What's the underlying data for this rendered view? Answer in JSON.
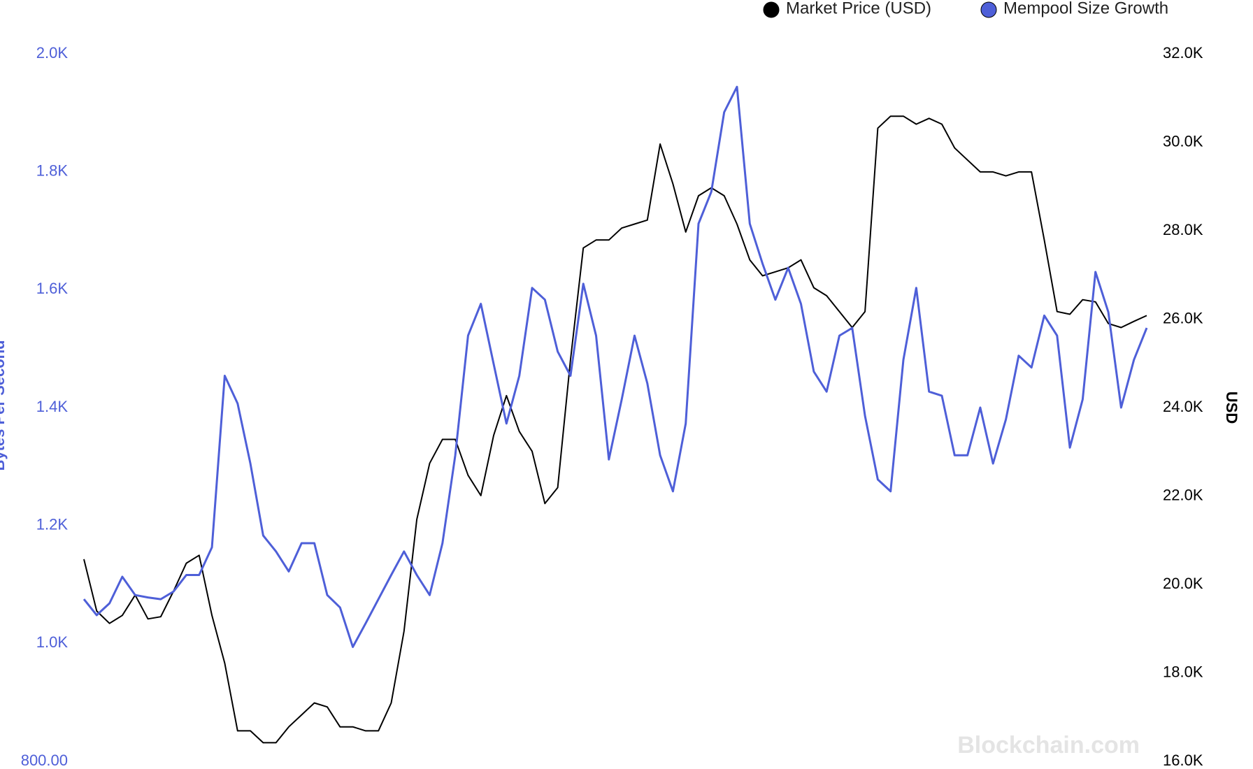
{
  "chart_data": {
    "type": "line",
    "y_label": "Bytes Per Second",
    "y2_label": "USD",
    "watermark": "Blockchain.com",
    "categories": [
      null,
      null,
      null,
      null,
      null,
      null,
      null,
      null,
      null,
      null,
      null,
      null,
      null,
      null,
      null,
      null,
      null,
      null,
      null,
      null,
      null,
      null,
      null,
      null,
      null,
      null,
      null,
      null,
      null,
      null,
      null,
      null,
      null,
      null,
      null,
      null,
      null,
      null,
      null,
      null,
      null,
      null,
      null,
      null,
      null,
      null,
      null,
      null,
      null,
      null,
      null,
      null,
      null,
      null,
      null,
      null,
      null,
      null,
      null,
      null,
      null,
      null,
      null,
      null,
      null,
      null,
      null,
      null,
      null,
      null,
      null,
      null,
      null,
      null,
      null,
      null,
      null,
      null,
      null,
      null,
      null,
      null,
      null,
      null
    ],
    "series": [
      {
        "name": "Market Price (USD)",
        "color": "#000000",
        "axis": "y2",
        "values": [
          20570,
          19400,
          19120,
          19300,
          19760,
          19220,
          19270,
          19850,
          20480,
          20660,
          19300,
          18220,
          16690,
          16690,
          16420,
          16420,
          16780,
          17050,
          17320,
          17230,
          16780,
          16780,
          16690,
          16690,
          17320,
          18940,
          21470,
          22740,
          23280,
          23280,
          22470,
          22010,
          23370,
          24270,
          23460,
          23010,
          21830,
          22190,
          25080,
          27610,
          27790,
          27790,
          28060,
          28150,
          28240,
          29960,
          29060,
          27970,
          28790,
          28970,
          28790,
          28150,
          27340,
          26980,
          27070,
          27160,
          27340,
          26710,
          26530,
          26170,
          25810,
          26170,
          30320,
          30590,
          30590,
          30410,
          30540,
          30410,
          29870,
          29600,
          29330,
          29330,
          29240,
          29330,
          29330,
          27790,
          26170,
          26110,
          26440,
          26390,
          25900,
          25810,
          25950,
          26080
        ]
      },
      {
        "name": "Mempool Size Growth",
        "color": "#4e5fd8",
        "axis": "y",
        "values": [
          1075,
          1048,
          1068,
          1113,
          1082,
          1078,
          1075,
          1088,
          1116,
          1116,
          1163,
          1454,
          1407,
          1305,
          1183,
          1156,
          1122,
          1170,
          1170,
          1082,
          1061,
          994,
          1034,
          1075,
          1116,
          1156,
          1116,
          1082,
          1170,
          1319,
          1522,
          1576,
          1474,
          1373,
          1454,
          1603,
          1583,
          1495,
          1454,
          1610,
          1522,
          1312,
          1414,
          1522,
          1441,
          1319,
          1258,
          1373,
          1712,
          1766,
          1901,
          1944,
          1712,
          1644,
          1583,
          1637,
          1576,
          1461,
          1427,
          1522,
          1535,
          1386,
          1278,
          1258,
          1481,
          1603,
          1427,
          1420,
          1319,
          1319,
          1400,
          1305,
          1380,
          1488,
          1468,
          1556,
          1522,
          1332,
          1414,
          1630,
          1562,
          1400,
          1481,
          1535
        ]
      }
    ],
    "ylim": [
      800,
      2000
    ],
    "yticks": [
      {
        "value": 800,
        "label": "800.00"
      },
      {
        "value": 1000,
        "label": "1.0K"
      },
      {
        "value": 1200,
        "label": "1.2K"
      },
      {
        "value": 1400,
        "label": "1.4K"
      },
      {
        "value": 1600,
        "label": "1.6K"
      },
      {
        "value": 1800,
        "label": "1.8K"
      },
      {
        "value": 2000,
        "label": "2.0K"
      }
    ],
    "y2lim": [
      16000,
      32000
    ],
    "y2ticks": [
      {
        "value": 16000,
        "label": "16.0K"
      },
      {
        "value": 18000,
        "label": "18.0K"
      },
      {
        "value": 20000,
        "label": "20.0K"
      },
      {
        "value": 22000,
        "label": "22.0K"
      },
      {
        "value": 24000,
        "label": "24.0K"
      },
      {
        "value": 26000,
        "label": "26.0K"
      },
      {
        "value": 28000,
        "label": "28.0K"
      },
      {
        "value": 30000,
        "label": "30.0K"
      },
      {
        "value": 32000,
        "label": "32.0K"
      }
    ],
    "legend": "top-right"
  }
}
